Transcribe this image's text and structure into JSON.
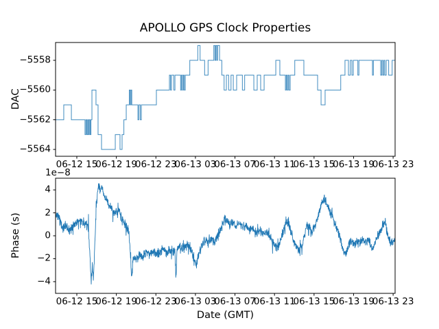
{
  "title": "APOLLO GPS Clock Properties",
  "colors": {
    "line": "#1f77b4",
    "axis": "#000000",
    "background": "#ffffff"
  },
  "chart_data": [
    {
      "type": "line",
      "subtype": "step-post",
      "title": "APOLLO GPS Clock Properties",
      "ylabel": "DAC",
      "xlabel": "",
      "x_unit": "hours since 2306-12 00:00 GMT (date-hour axis)",
      "xlim": [
        12.85,
        47.2
      ],
      "ylim": [
        -5564.46,
        -5556.8
      ],
      "grid": false,
      "legend": "none",
      "yticks": [
        {
          "v": -5558,
          "label": "−5558"
        },
        {
          "v": -5560,
          "label": "−5560"
        },
        {
          "v": -5562,
          "label": "−5562"
        },
        {
          "v": -5564,
          "label": "−5564"
        }
      ],
      "xticks": {
        "hours": [
          15,
          19,
          23,
          27,
          31,
          35,
          39,
          43,
          47
        ],
        "labels": [
          "06-12 15",
          "06-12 19",
          "06-12 23",
          "06-13 03",
          "06-13 07",
          "06-13 11",
          "06-13 15",
          "06-13 19",
          "06-13 23"
        ]
      },
      "series": [
        {
          "name": "DAC",
          "step_points": [
            [
              12.85,
              -5562
            ],
            [
              13.68,
              -5561
            ],
            [
              14.45,
              -5562
            ],
            [
              15.83,
              -5563
            ],
            [
              15.92,
              -5562
            ],
            [
              16.01,
              -5563
            ],
            [
              16.1,
              -5562
            ],
            [
              16.18,
              -5563
            ],
            [
              16.26,
              -5562
            ],
            [
              16.35,
              -5563
            ],
            [
              16.43,
              -5562
            ],
            [
              16.53,
              -5560
            ],
            [
              16.94,
              -5561
            ],
            [
              17.15,
              -5563
            ],
            [
              17.5,
              -5564
            ],
            [
              18.89,
              -5563
            ],
            [
              19.37,
              -5564
            ],
            [
              19.58,
              -5563
            ],
            [
              19.76,
              -5562
            ],
            [
              20.0,
              -5561
            ],
            [
              20.31,
              -5560
            ],
            [
              20.4,
              -5561
            ],
            [
              20.48,
              -5560
            ],
            [
              20.56,
              -5561
            ],
            [
              21.18,
              -5562
            ],
            [
              21.28,
              -5561
            ],
            [
              21.42,
              -5562
            ],
            [
              21.53,
              -5561
            ],
            [
              23.05,
              -5560
            ],
            [
              24.37,
              -5559
            ],
            [
              24.48,
              -5560
            ],
            [
              24.58,
              -5559
            ],
            [
              24.81,
              -5560
            ],
            [
              24.93,
              -5559
            ],
            [
              25.5,
              -5560
            ],
            [
              25.59,
              -5559
            ],
            [
              25.69,
              -5560
            ],
            [
              25.78,
              -5559
            ],
            [
              25.87,
              -5560
            ],
            [
              25.97,
              -5559
            ],
            [
              26.43,
              -5558
            ],
            [
              27.24,
              -5557
            ],
            [
              27.47,
              -5558
            ],
            [
              27.93,
              -5559
            ],
            [
              28.28,
              -5558
            ],
            [
              28.86,
              -5557
            ],
            [
              28.97,
              -5558
            ],
            [
              29.06,
              -5557
            ],
            [
              29.16,
              -5558
            ],
            [
              29.24,
              -5557
            ],
            [
              29.44,
              -5558
            ],
            [
              29.67,
              -5559
            ],
            [
              29.9,
              -5560
            ],
            [
              30.13,
              -5559
            ],
            [
              30.36,
              -5560
            ],
            [
              30.6,
              -5559
            ],
            [
              30.83,
              -5560
            ],
            [
              31.17,
              -5559
            ],
            [
              31.75,
              -5560
            ],
            [
              31.98,
              -5559
            ],
            [
              32.91,
              -5560
            ],
            [
              33.25,
              -5559
            ],
            [
              33.6,
              -5560
            ],
            [
              33.95,
              -5559
            ],
            [
              35.13,
              -5558
            ],
            [
              35.54,
              -5559
            ],
            [
              36.1,
              -5560
            ],
            [
              36.19,
              -5559
            ],
            [
              36.28,
              -5560
            ],
            [
              36.38,
              -5559
            ],
            [
              36.47,
              -5560
            ],
            [
              36.59,
              -5559
            ],
            [
              37.05,
              -5558
            ],
            [
              37.97,
              -5559
            ],
            [
              39.36,
              -5560
            ],
            [
              39.71,
              -5561
            ],
            [
              40.12,
              -5560
            ],
            [
              41.7,
              -5559
            ],
            [
              42.13,
              -5558
            ],
            [
              42.48,
              -5559
            ],
            [
              42.67,
              -5558
            ],
            [
              42.83,
              -5559
            ],
            [
              42.97,
              -5558
            ],
            [
              43.43,
              -5559
            ],
            [
              43.54,
              -5558
            ],
            [
              44.91,
              -5559
            ],
            [
              45.0,
              -5558
            ],
            [
              45.74,
              -5559
            ],
            [
              45.85,
              -5558
            ],
            [
              45.95,
              -5559
            ],
            [
              46.06,
              -5558
            ],
            [
              46.16,
              -5559
            ],
            [
              46.3,
              -5558
            ],
            [
              46.55,
              -5559
            ],
            [
              46.9,
              -5558
            ],
            [
              47.2,
              -5558
            ]
          ]
        }
      ]
    },
    {
      "type": "line",
      "subtype": "noisy-timeseries",
      "ylabel": "Phase (s)",
      "xlabel": "Date (GMT)",
      "offset_text": "1e−8",
      "y_scale_factor": 1e-08,
      "xlim": [
        12.85,
        47.2
      ],
      "ylim": [
        -5.02,
        5.02
      ],
      "grid": false,
      "legend": "none",
      "yticks": [
        {
          "v": 4,
          "label": "4"
        },
        {
          "v": 2,
          "label": "2"
        },
        {
          "v": 0,
          "label": "0"
        },
        {
          "v": -2,
          "label": "−2"
        },
        {
          "v": -4,
          "label": "−4"
        }
      ],
      "xticks": {
        "hours": [
          15,
          19,
          23,
          27,
          31,
          35,
          39,
          43,
          47
        ],
        "labels": [
          "06-12 15",
          "06-12 19",
          "06-12 23",
          "06-13 03",
          "06-13 07",
          "06-13 11",
          "06-13 15",
          "06-13 19",
          "06-13 23"
        ]
      },
      "series": [
        {
          "name": "Phase",
          "noise_amplitude": 0.45,
          "samples": 1600,
          "clamp": [
            -4.45,
            4.55
          ],
          "trend_points": [
            [
              12.85,
              1.6
            ],
            [
              13.13,
              1.9
            ],
            [
              13.34,
              1.2
            ],
            [
              13.62,
              0.6
            ],
            [
              13.89,
              0.9
            ],
            [
              14.17,
              0.4
            ],
            [
              14.45,
              0.7
            ],
            [
              14.72,
              1.0
            ],
            [
              15.07,
              1.2
            ],
            [
              15.42,
              1.1
            ],
            [
              15.77,
              1.2
            ],
            [
              16.04,
              1.1
            ],
            [
              16.18,
              0.6
            ],
            [
              16.32,
              -1.5
            ],
            [
              16.46,
              -4.2
            ],
            [
              16.56,
              -2.6
            ],
            [
              16.67,
              -3.8
            ],
            [
              16.81,
              -1.2
            ],
            [
              16.95,
              2.2
            ],
            [
              17.08,
              3.6
            ],
            [
              17.22,
              4.4
            ],
            [
              17.36,
              4.0
            ],
            [
              17.5,
              4.3
            ],
            [
              17.71,
              3.6
            ],
            [
              17.92,
              3.2
            ],
            [
              18.19,
              2.9
            ],
            [
              18.47,
              2.5
            ],
            [
              18.75,
              2.1
            ],
            [
              19.03,
              2.0
            ],
            [
              19.23,
              2.3
            ],
            [
              19.51,
              1.6
            ],
            [
              19.79,
              1.1
            ],
            [
              20.07,
              0.7
            ],
            [
              20.27,
              0.4
            ],
            [
              20.41,
              -1.6
            ],
            [
              20.55,
              -3.6
            ],
            [
              20.69,
              -1.8
            ],
            [
              20.83,
              -2.2
            ],
            [
              21.04,
              -2.0
            ],
            [
              21.32,
              -1.6
            ],
            [
              21.66,
              -1.9
            ],
            [
              22.01,
              -1.4
            ],
            [
              22.36,
              -1.7
            ],
            [
              22.71,
              -1.3
            ],
            [
              23.05,
              -1.6
            ],
            [
              23.4,
              -1.4
            ],
            [
              23.75,
              -1.1
            ],
            [
              24.09,
              -1.5
            ],
            [
              24.44,
              -1.2
            ],
            [
              24.79,
              -1.4
            ],
            [
              24.93,
              -1.4
            ],
            [
              25.03,
              -3.8
            ],
            [
              25.14,
              -1.2
            ],
            [
              25.48,
              -0.9
            ],
            [
              25.83,
              -1.1
            ],
            [
              26.18,
              -0.7
            ],
            [
              26.52,
              -1.0
            ],
            [
              26.87,
              -2.2
            ],
            [
              27.08,
              -2.6
            ],
            [
              27.29,
              -1.8
            ],
            [
              27.56,
              -1.0
            ],
            [
              27.91,
              -0.4
            ],
            [
              28.26,
              -0.7
            ],
            [
              28.61,
              -0.3
            ],
            [
              28.95,
              -0.6
            ],
            [
              29.3,
              0.2
            ],
            [
              29.65,
              0.8
            ],
            [
              29.93,
              1.5
            ],
            [
              30.2,
              1.4
            ],
            [
              30.48,
              0.9
            ],
            [
              30.76,
              1.2
            ],
            [
              31.11,
              0.8
            ],
            [
              31.45,
              1.1
            ],
            [
              31.8,
              0.7
            ],
            [
              32.15,
              0.9
            ],
            [
              32.5,
              0.5
            ],
            [
              32.84,
              0.7
            ],
            [
              33.19,
              0.3
            ],
            [
              33.54,
              0.4
            ],
            [
              33.88,
              0.1
            ],
            [
              34.23,
              0.3
            ],
            [
              34.58,
              -0.1
            ],
            [
              34.93,
              -0.6
            ],
            [
              35.27,
              -1.1
            ],
            [
              35.55,
              -0.6
            ],
            [
              35.83,
              0.2
            ],
            [
              36.1,
              0.9
            ],
            [
              36.31,
              1.3
            ],
            [
              36.59,
              0.6
            ],
            [
              36.87,
              -0.2
            ],
            [
              37.14,
              -0.9
            ],
            [
              37.42,
              -1.3
            ],
            [
              37.7,
              -0.9
            ],
            [
              37.98,
              -0.2
            ],
            [
              38.18,
              0.6
            ],
            [
              38.46,
              0.9
            ],
            [
              38.74,
              0.4
            ],
            [
              39.02,
              0.6
            ],
            [
              39.29,
              1.4
            ],
            [
              39.57,
              2.2
            ],
            [
              39.85,
              3.0
            ],
            [
              40.06,
              3.3
            ],
            [
              40.27,
              2.7
            ],
            [
              40.54,
              2.3
            ],
            [
              40.82,
              1.7
            ],
            [
              41.1,
              1.1
            ],
            [
              41.38,
              0.4
            ],
            [
              41.65,
              -0.3
            ],
            [
              41.93,
              -1.2
            ],
            [
              42.21,
              -1.6
            ],
            [
              42.49,
              -0.8
            ],
            [
              42.77,
              -0.5
            ],
            [
              43.04,
              -0.8
            ],
            [
              43.32,
              -0.4
            ],
            [
              43.6,
              -0.7
            ],
            [
              43.88,
              -0.3
            ],
            [
              44.15,
              -0.6
            ],
            [
              44.43,
              -0.4
            ],
            [
              44.71,
              -0.8
            ],
            [
              44.99,
              -1.2
            ],
            [
              45.2,
              -0.6
            ],
            [
              45.47,
              0.0
            ],
            [
              45.75,
              0.5
            ],
            [
              45.96,
              1.0
            ],
            [
              46.17,
              1.3
            ],
            [
              46.38,
              0.4
            ],
            [
              46.58,
              -0.3
            ],
            [
              46.79,
              -0.6
            ],
            [
              47.0,
              -0.4
            ],
            [
              47.2,
              -0.5
            ]
          ]
        }
      ]
    }
  ]
}
